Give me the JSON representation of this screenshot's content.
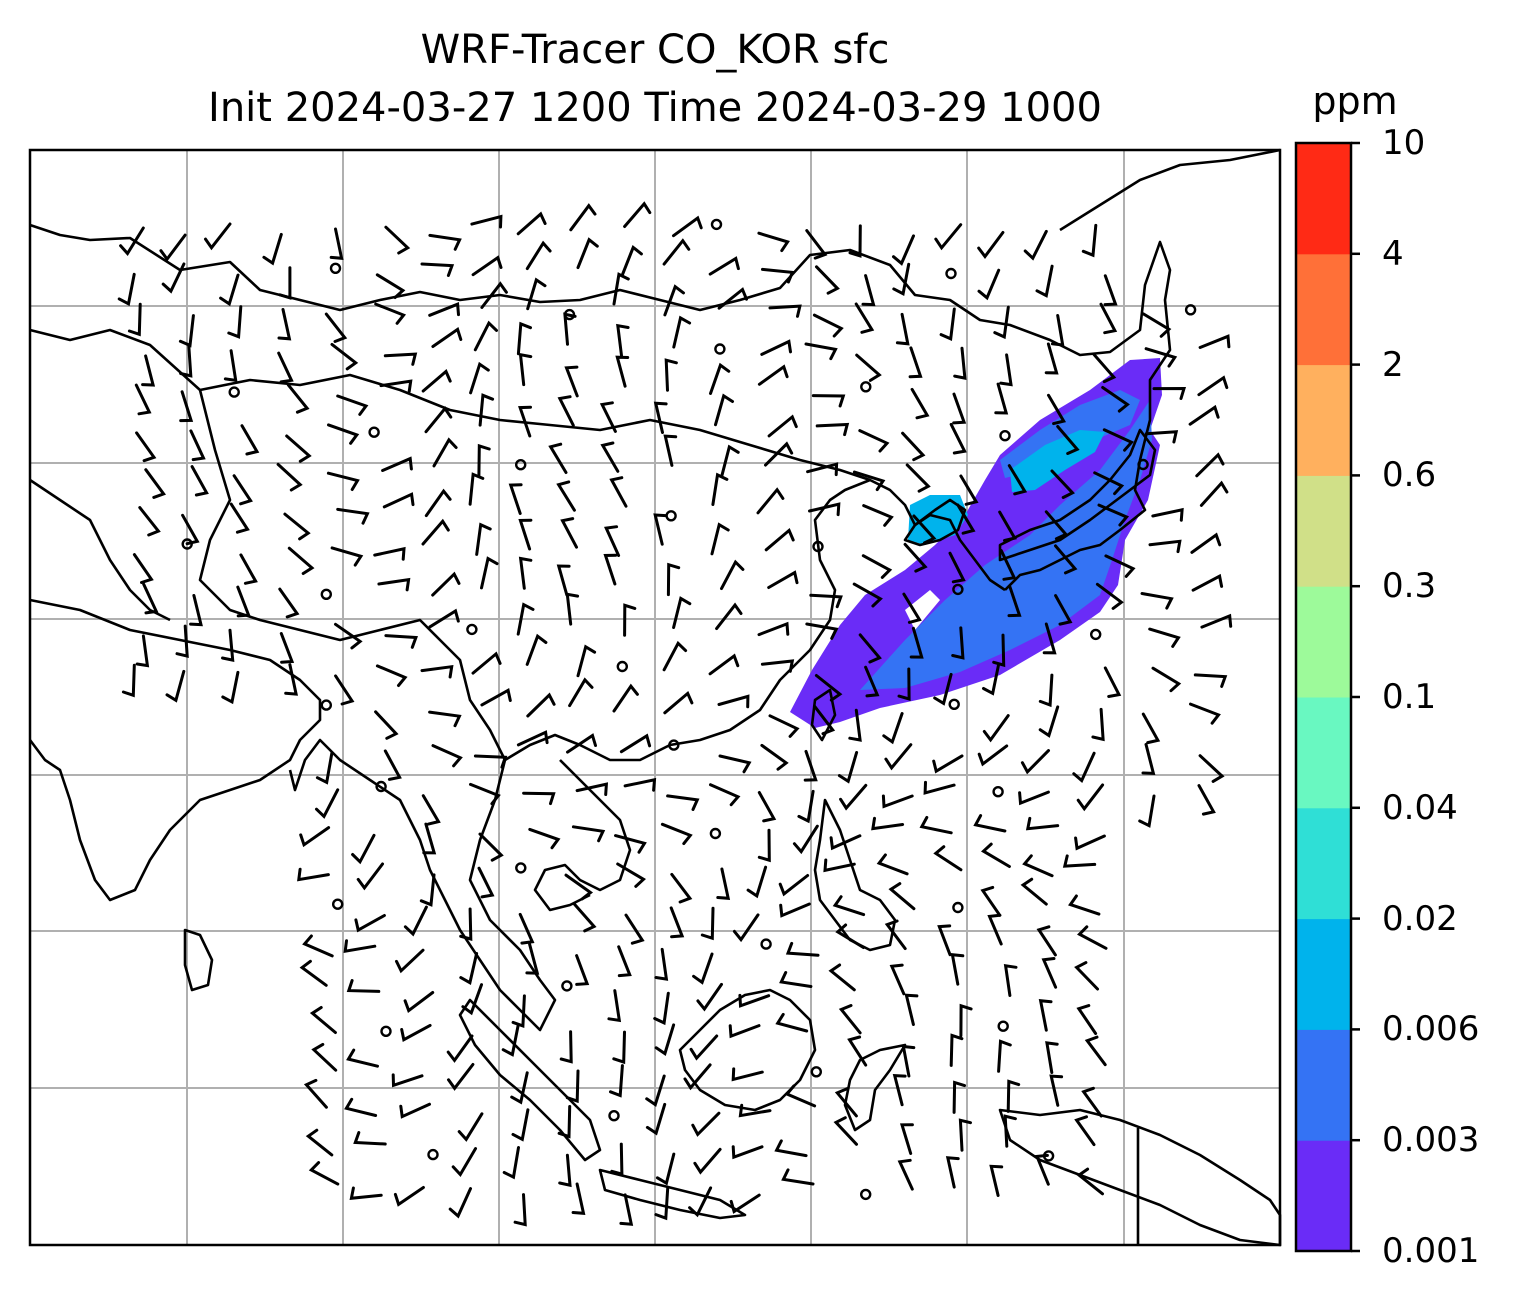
{
  "title": {
    "line1": "WRF-Tracer CO_KOR sfc",
    "line2": "Init 2024-03-27 1200 Time 2024-03-29 1000"
  },
  "colorbar": {
    "unit": "ppm",
    "tick_labels": [
      "0.001",
      "0.003",
      "0.006",
      "0.02",
      "0.04",
      "0.1",
      "0.3",
      "0.6",
      "2",
      "4",
      "10"
    ],
    "colors": [
      "#6a2cf7",
      "#3473f4",
      "#00b3ec",
      "#2fdfd6",
      "#69f8c1",
      "#9dfa9a",
      "#d0e088",
      "#ffb05e",
      "#ff7038",
      "#ff2a15"
    ]
  },
  "map": {
    "grid": true,
    "plume_colors": [
      "#6a2cf7",
      "#3473f4",
      "#00b3ec"
    ]
  }
}
